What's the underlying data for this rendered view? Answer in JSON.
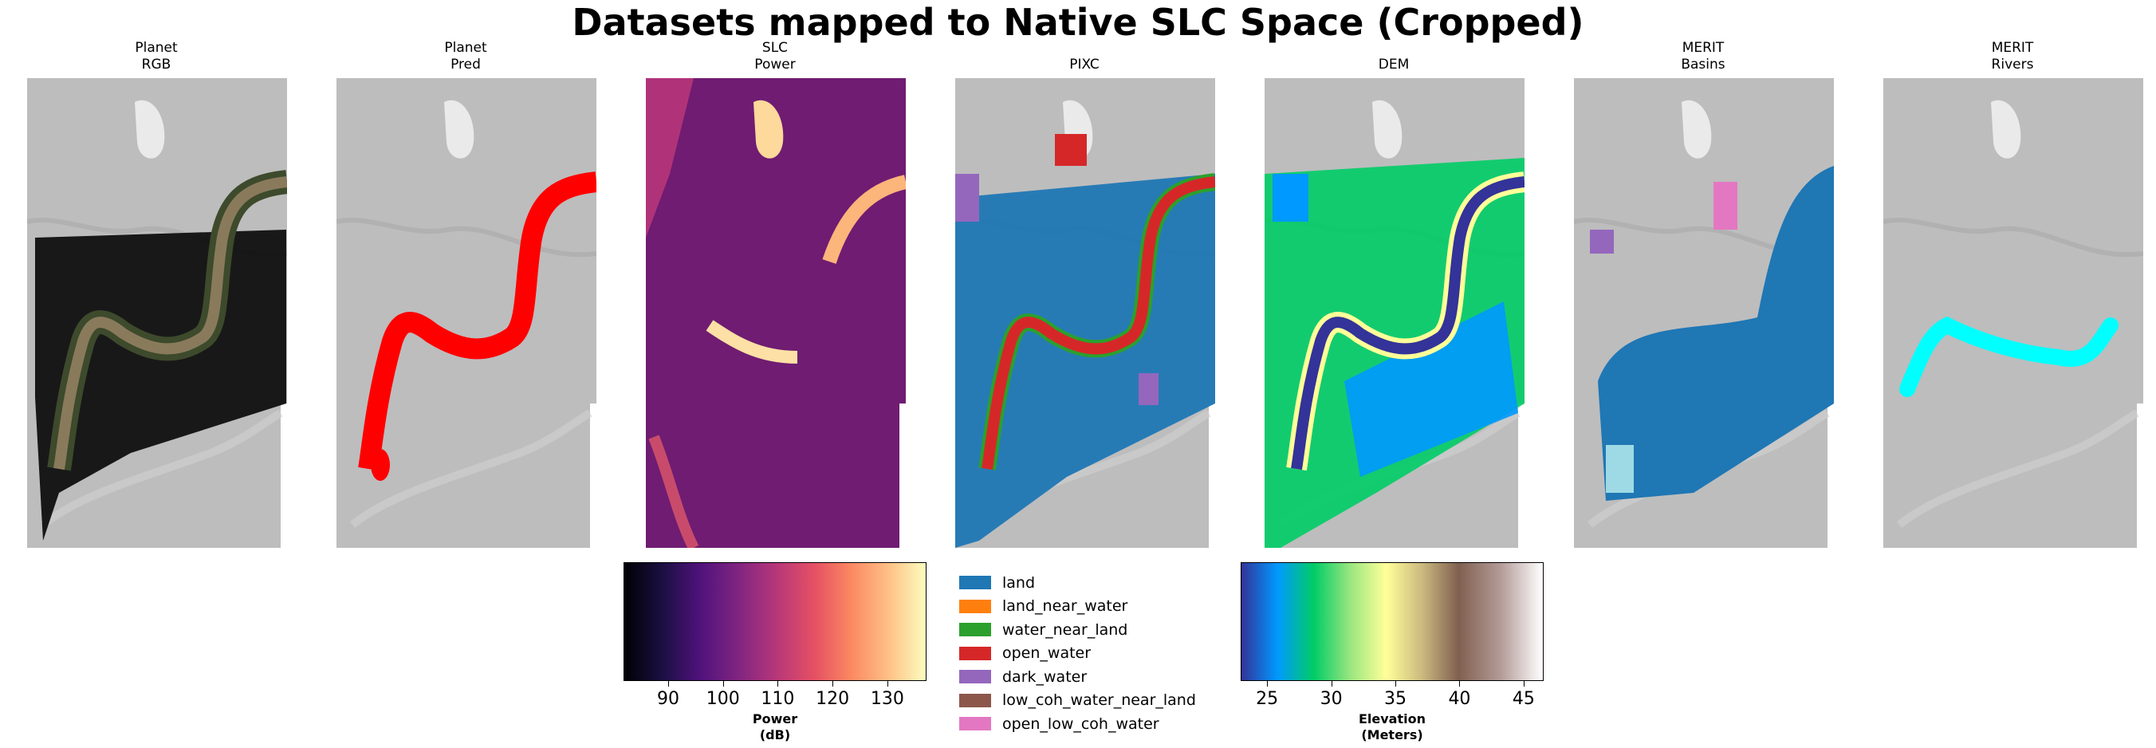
{
  "figure": {
    "title": "Datasets mapped to Native SLC Space (Cropped)"
  },
  "panels": [
    {
      "title": "Planet\nRGB",
      "overlay": "rgb"
    },
    {
      "title": "Planet\nPred",
      "overlay": "pred",
      "color": "#ff0000"
    },
    {
      "title": "SLC\nPower",
      "overlay": "slc"
    },
    {
      "title": "PIXC",
      "overlay": "pixc"
    },
    {
      "title": "DEM",
      "overlay": "dem"
    },
    {
      "title": "MERIT\nBasins",
      "overlay": "basins"
    },
    {
      "title": "MERIT\nRivers",
      "overlay": "rivers",
      "color": "#00ffff"
    }
  ],
  "chart_data": [
    {
      "type": "colorbar",
      "name": "SLC power",
      "colormap": "magma",
      "label": "Power\n(dB)",
      "range": [
        82,
        137
      ],
      "ticks": [
        90,
        100,
        110,
        120,
        130
      ]
    },
    {
      "type": "legend",
      "name": "PIXC classification",
      "entries": [
        {
          "label": "land",
          "color": "#1f77b4"
        },
        {
          "label": "land_near_water",
          "color": "#ff7f0e"
        },
        {
          "label": "water_near_land",
          "color": "#2ca02c"
        },
        {
          "label": "open_water",
          "color": "#d62728"
        },
        {
          "label": "dark_water",
          "color": "#9467bd"
        },
        {
          "label": "low_coh_water_near_land",
          "color": "#8c564b"
        },
        {
          "label": "open_low_coh_water",
          "color": "#e377c2"
        }
      ]
    },
    {
      "type": "colorbar",
      "name": "DEM elevation",
      "colormap": "terrain",
      "label": "Elevation\n(Meters)",
      "range": [
        23,
        46.5
      ],
      "ticks": [
        25,
        30,
        35,
        40,
        45
      ]
    }
  ]
}
